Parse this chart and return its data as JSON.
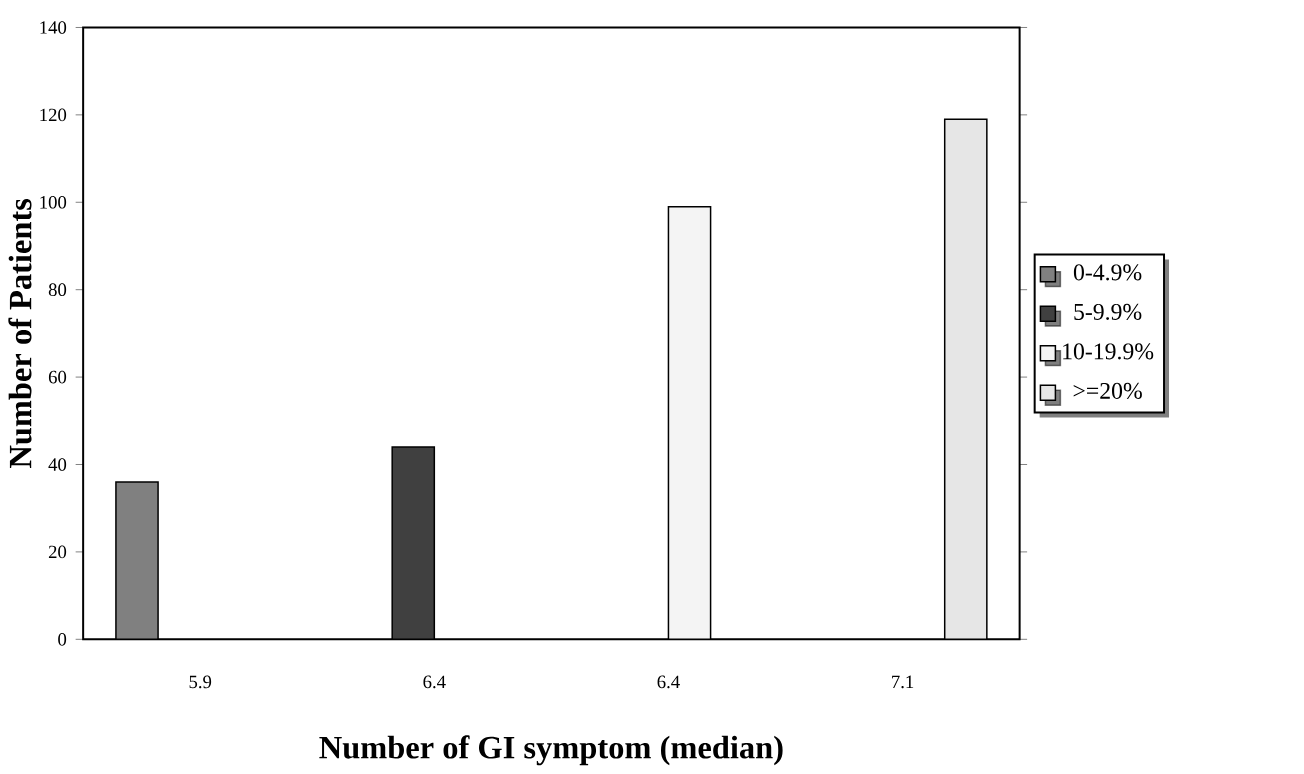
{
  "chart_data": {
    "type": "bar",
    "xlabel": "Number of GI symptom (median)",
    "ylabel": "Number of Patients",
    "categories": [
      "5.9",
      "6.4",
      "6.4",
      "7.1"
    ],
    "series": [
      {
        "name": "0-4.9%",
        "color": "#808080",
        "values": [
          36,
          null,
          null,
          null
        ]
      },
      {
        "name": "5-9.9%",
        "color": "#404040",
        "values": [
          null,
          44,
          null,
          null
        ]
      },
      {
        "name": "10-19.9%",
        "color": "#f4f4f4",
        "values": [
          null,
          null,
          99,
          null
        ]
      },
      {
        "name": ">=20%",
        "color": "#e6e6e6",
        "values": [
          null,
          null,
          null,
          119
        ]
      }
    ],
    "ylim": [
      0,
      140
    ],
    "yticks": [
      0,
      20,
      40,
      60,
      80,
      100,
      120,
      140
    ],
    "legend": "right"
  }
}
